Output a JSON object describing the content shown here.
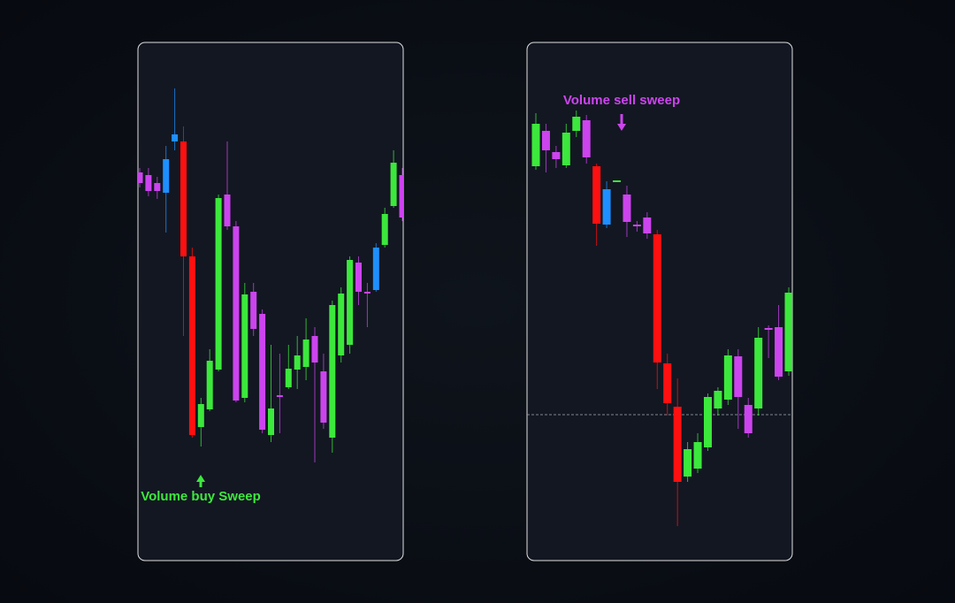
{
  "chart_data": [
    {
      "type": "candlestick",
      "annotation": "Volume buy Sweep",
      "annotation_color": "#3de83d",
      "ylim": [
        0,
        586
      ],
      "open": [
        439,
        436,
        427,
        416,
        474,
        474,
        344,
        151,
        171,
        216,
        414,
        378,
        184,
        304,
        279,
        142,
        187,
        196,
        216,
        219,
        254,
        214,
        139,
        232,
        244,
        337,
        304,
        306,
        357,
        401,
        436
      ],
      "high": [
        444,
        444,
        434,
        469,
        534,
        491,
        354,
        184,
        239,
        414,
        474,
        384,
        314,
        314,
        284,
        244,
        234,
        244,
        254,
        274,
        264,
        234,
        294,
        309,
        344,
        344,
        314,
        359,
        399,
        464,
        444
      ],
      "low": [
        422,
        412,
        409,
        371,
        464,
        254,
        139,
        129,
        169,
        214,
        374,
        179,
        179,
        254,
        144,
        134,
        144,
        194,
        194,
        204,
        111,
        149,
        122,
        224,
        234,
        289,
        264,
        304,
        354,
        399,
        384
      ],
      "close": [
        427,
        418,
        418,
        454,
        482,
        344,
        142,
        177,
        226,
        410,
        378,
        181,
        301,
        262,
        148,
        172,
        185,
        217,
        232,
        250,
        224,
        156,
        289,
        302,
        340,
        304,
        302,
        354,
        392,
        450,
        388
      ],
      "colors": [
        "#cc44ee",
        "#cc44ee",
        "#cc44ee",
        "#1e8fff",
        "#1e8fff",
        "#ff1010",
        "#ff1010",
        "#3ce83c",
        "#3ce83c",
        "#3ce83c",
        "#cc44ee",
        "#cc44ee",
        "#3ce83c",
        "#cc44ee",
        "#cc44ee",
        "#3ce83c",
        "#cc44ee",
        "#3ce83c",
        "#3ce83c",
        "#3ce83c",
        "#cc44ee",
        "#cc44ee",
        "#3ce83c",
        "#3ce83c",
        "#3ce83c",
        "#cc44ee",
        "#cc44ee",
        "#1e8fff",
        "#3ce83c",
        "#3ce83c",
        "#cc44ee"
      ]
    },
    {
      "type": "candlestick",
      "annotation": "Volume sell sweep",
      "annotation_color": "#cc44ee",
      "ylim": [
        0,
        586
      ],
      "reference_line": 165,
      "open": [
        446,
        486,
        462,
        447,
        486,
        498,
        446,
        380,
        428,
        414,
        380,
        388,
        369,
        223,
        174,
        95,
        104,
        128,
        172,
        182,
        231,
        176,
        172,
        263,
        264,
        214
      ],
      "high": [
        506,
        494,
        469,
        494,
        509,
        504,
        449,
        429,
        430,
        424,
        384,
        394,
        374,
        234,
        206,
        134,
        144,
        189,
        196,
        239,
        239,
        184,
        264,
        266,
        289,
        309
      ],
      "low": [
        442,
        439,
        444,
        444,
        479,
        449,
        356,
        376,
        428,
        366,
        372,
        364,
        194,
        164,
        39,
        89,
        99,
        124,
        164,
        176,
        149,
        139,
        164,
        229,
        204,
        209
      ],
      "close": [
        494,
        464,
        454,
        484,
        502,
        456,
        381,
        420,
        430,
        383,
        378,
        370,
        224,
        178,
        89,
        126,
        134,
        185,
        192,
        232,
        185,
        144,
        252,
        262,
        208,
        303
      ],
      "colors": [
        "#3ce83c",
        "#cc44ee",
        "#cc44ee",
        "#3ce83c",
        "#3ce83c",
        "#cc44ee",
        "#ff1010",
        "#1e8fff",
        "#3ce83c",
        "#cc44ee",
        "#cc44ee",
        "#cc44ee",
        "#ff1010",
        "#ff1010",
        "#ff1010",
        "#3ce83c",
        "#3ce83c",
        "#3ce83c",
        "#3ce83c",
        "#3ce83c",
        "#cc44ee",
        "#cc44ee",
        "#3ce83c",
        "#cc44ee",
        "#cc44ee",
        "#3ce83c"
      ]
    }
  ]
}
